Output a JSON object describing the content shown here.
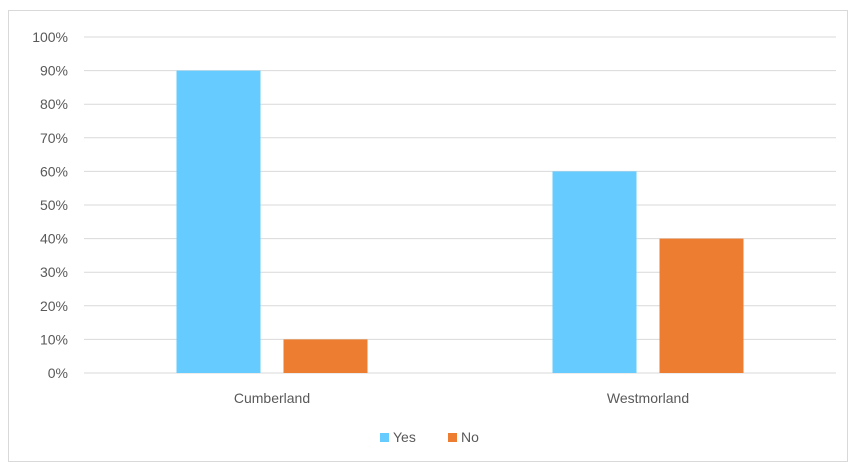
{
  "chart_data": {
    "type": "bar",
    "title": "",
    "xlabel": "",
    "ylabel": "",
    "categories": [
      "Cumberland",
      "Westmorland"
    ],
    "series": [
      {
        "name": "Yes",
        "values": [
          90,
          60
        ],
        "color": "#66CCFF"
      },
      {
        "name": "No",
        "values": [
          10,
          40
        ],
        "color": "#ED7D31"
      }
    ],
    "ylim": [
      0,
      100
    ],
    "y_ticks": [
      0,
      10,
      20,
      30,
      40,
      50,
      60,
      70,
      80,
      90,
      100
    ],
    "y_tick_labels": [
      "0%",
      "10%",
      "20%",
      "30%",
      "40%",
      "50%",
      "60%",
      "70%",
      "80%",
      "90%",
      "100%"
    ],
    "grid": true,
    "legend_position": "bottom",
    "colors": {
      "gridline": "#d9d9d9",
      "axis_text": "#595959",
      "border": "#d9d9d9"
    }
  }
}
